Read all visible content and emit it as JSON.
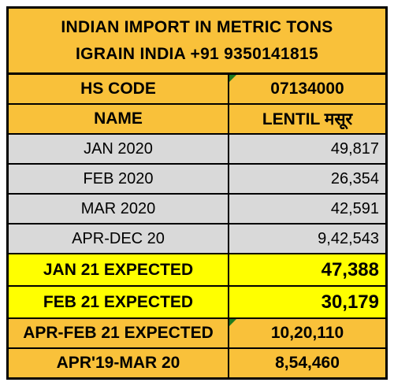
{
  "title": {
    "line1": "INDIAN IMPORT IN METRIC TONS",
    "line2": "IGRAIN INDIA +91 9350141815"
  },
  "header": {
    "hs_code_label": "HS CODE",
    "hs_code_value": "07134000",
    "name_label": "NAME",
    "name_value": "LENTIL मसूर"
  },
  "rows": [
    {
      "label": "JAN 2020",
      "value": "49,817"
    },
    {
      "label": "FEB 2020",
      "value": "26,354"
    },
    {
      "label": "MAR 2020",
      "value": "42,591"
    },
    {
      "label": "APR-DEC 20",
      "value": "9,42,543"
    },
    {
      "label": "JAN 21 EXPECTED",
      "value": "47,388"
    },
    {
      "label": "FEB 21 EXPECTED",
      "value": "30,179"
    },
    {
      "label": "APR-FEB 21 EXPECTED",
      "value": "10,20,110"
    },
    {
      "label": "APR'19-MAR 20",
      "value": "8,54,460"
    }
  ],
  "colors": {
    "orange": "#f9c13a",
    "yellow": "#ffff00",
    "gray": "#d9d9d9",
    "comment_marker": "#1f7a1f"
  }
}
